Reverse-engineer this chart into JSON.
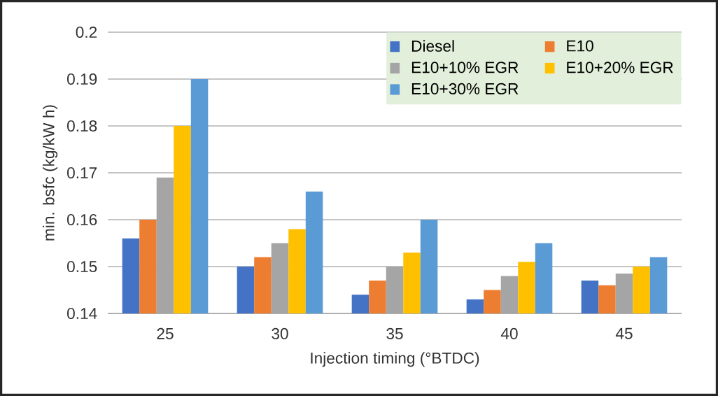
{
  "chart_data": {
    "type": "bar",
    "xlabel": "Injection timing (°BTDC)",
    "ylabel": "min. bsfc (kg/kW h)",
    "categories": [
      "25",
      "30",
      "35",
      "40",
      "45"
    ],
    "series": [
      {
        "name": "Diesel",
        "color": "#4472c4",
        "values": [
          0.156,
          0.15,
          0.144,
          0.143,
          0.147
        ]
      },
      {
        "name": "E10",
        "color": "#ed7d31",
        "values": [
          0.16,
          0.152,
          0.147,
          0.145,
          0.146
        ]
      },
      {
        "name": "E10+10%  EGR",
        "color": "#a5a5a5",
        "values": [
          0.169,
          0.155,
          0.15,
          0.148,
          0.1485
        ]
      },
      {
        "name": "E10+20%  EGR",
        "color": "#ffc000",
        "values": [
          0.18,
          0.158,
          0.153,
          0.151,
          0.15
        ]
      },
      {
        "name": "E10+30%  EGR",
        "color": "#5b9bd5",
        "values": [
          0.19,
          0.166,
          0.16,
          0.155,
          0.152
        ]
      }
    ],
    "ylim": [
      0.14,
      0.2
    ],
    "yticks": [
      0.14,
      0.15,
      0.16,
      0.17,
      0.18,
      0.19,
      0.2
    ],
    "grid": "y",
    "legend": "top right"
  }
}
